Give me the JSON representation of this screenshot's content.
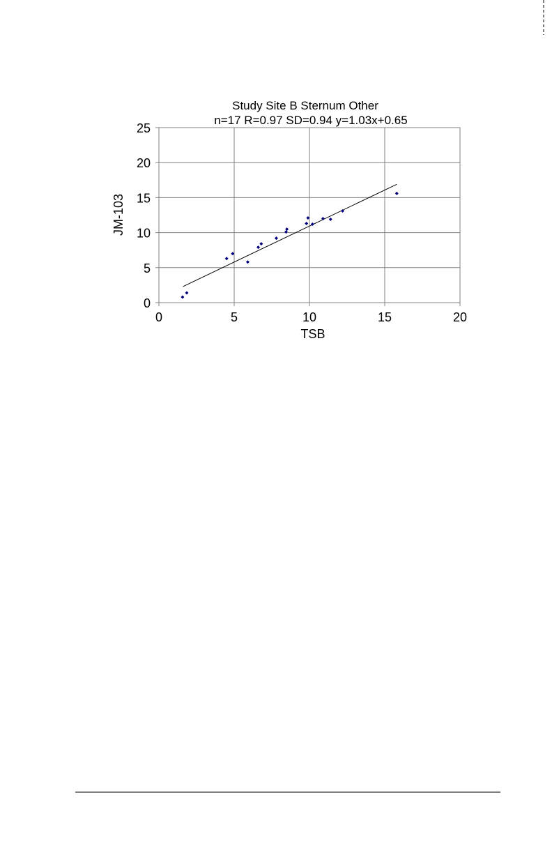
{
  "chart_data": {
    "type": "scatter",
    "title": "Study Site B Sternum Other",
    "subtitle": "n=17 R=0.97 SD=0.94 y=1.03x+0.65",
    "x_label": "TSB",
    "y_label": "JM-103",
    "xlim": [
      0,
      20
    ],
    "ylim": [
      0,
      25
    ],
    "xticks": [
      0,
      5,
      10,
      15,
      20
    ],
    "yticks": [
      0,
      5,
      10,
      15,
      20,
      25
    ],
    "grid": true,
    "color": "#00007f",
    "x": [
      1.57,
      1.85,
      4.5,
      4.9,
      5.9,
      6.6,
      6.8,
      7.8,
      8.45,
      8.5,
      9.8,
      9.9,
      10.2,
      10.9,
      11.4,
      12.2,
      15.8
    ],
    "values": [
      0.8,
      1.4,
      6.3,
      7.0,
      5.8,
      7.9,
      8.4,
      9.2,
      10.1,
      10.5,
      11.3,
      12.1,
      11.2,
      12.0,
      11.9,
      13.1,
      15.6
    ],
    "trendline": {
      "x": [
        1.6,
        15.8
      ],
      "y": [
        2.3,
        16.9
      ],
      "color": "#000000"
    }
  }
}
